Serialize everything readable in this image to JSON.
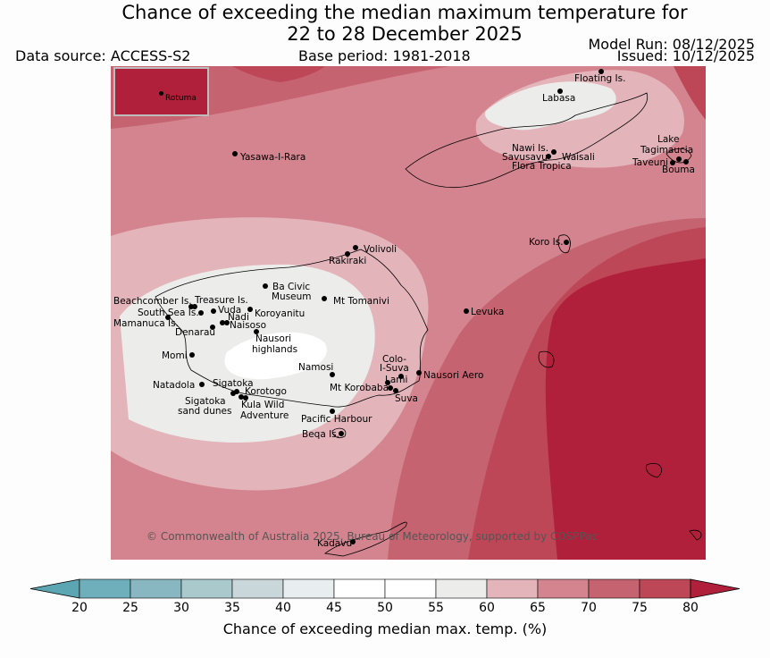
{
  "title_line1": "Chance of exceeding the median maximum temperature for",
  "title_line2": "22 to 28 December 2025",
  "data_source": "Data source: ACCESS-S2",
  "base_period": "Base period: 1981-2018",
  "model_run": "Model Run: 08/12/2025",
  "issued": "Issued: 10/12/2025",
  "copyright": "© Commonwealth of Australia 2025, Bureau of Meteorology, supported by COSPPac",
  "inset_label": "Rotuma",
  "colorbar": {
    "title": "Chance of exceeding median max. temp. (%)",
    "ticks": [
      "20",
      "25",
      "30",
      "35",
      "40",
      "45",
      "50",
      "55",
      "60",
      "65",
      "70",
      "75",
      "80"
    ],
    "colors": [
      "#5ca5b3",
      "#6faebb",
      "#88b7c1",
      "#a9c9cd",
      "#cad7da",
      "#e8eeef",
      "#ffffff",
      "#ffffff",
      "#ececea",
      "#e3b5bb",
      "#d4848f",
      "#c56370",
      "#bd4756",
      "#b1203a"
    ],
    "unit": "%"
  },
  "places": [
    {
      "name": "Floating Is."
    },
    {
      "name": "Labasa"
    },
    {
      "name": "Yasawa-I-Rara"
    },
    {
      "name": "Nawi Is."
    },
    {
      "name": "Savusavu"
    },
    {
      "name": "Waisali"
    },
    {
      "name": "Flora Tropica"
    },
    {
      "name": "Lake"
    },
    {
      "name": "Tagimaucia"
    },
    {
      "name": "Taveuni"
    },
    {
      "name": "Bouma"
    },
    {
      "name": "Volivoli"
    },
    {
      "name": "Rakiraki"
    },
    {
      "name": "Koro Is."
    },
    {
      "name": "Ba Civic"
    },
    {
      "name": "Museum"
    },
    {
      "name": "Mt Tomanivi"
    },
    {
      "name": "Beachcomber Is."
    },
    {
      "name": "Treasure Is."
    },
    {
      "name": "South Sea Is."
    },
    {
      "name": "Vuda"
    },
    {
      "name": "Nadi"
    },
    {
      "name": "Koroyanitu"
    },
    {
      "name": "Mamanuca Is."
    },
    {
      "name": "Denarau"
    },
    {
      "name": "Naisoso"
    },
    {
      "name": "Levuka"
    },
    {
      "name": "Nausori"
    },
    {
      "name": "highlands"
    },
    {
      "name": "Momi"
    },
    {
      "name": "Namosi"
    },
    {
      "name": "Colo-"
    },
    {
      "name": "I-Suva"
    },
    {
      "name": "Natadola"
    },
    {
      "name": "Sigatoka"
    },
    {
      "name": "Lami"
    },
    {
      "name": "Nausori Aero"
    },
    {
      "name": "Korotogo"
    },
    {
      "name": "Mt Korobaba"
    },
    {
      "name": "Sigatoka"
    },
    {
      "name": "Suva"
    },
    {
      "name": "sand dunes"
    },
    {
      "name": "Kula Wild"
    },
    {
      "name": "Adventure"
    },
    {
      "name": "Pacific Harbour"
    },
    {
      "name": "Beqa Is."
    },
    {
      "name": "Kadavu"
    }
  ]
}
